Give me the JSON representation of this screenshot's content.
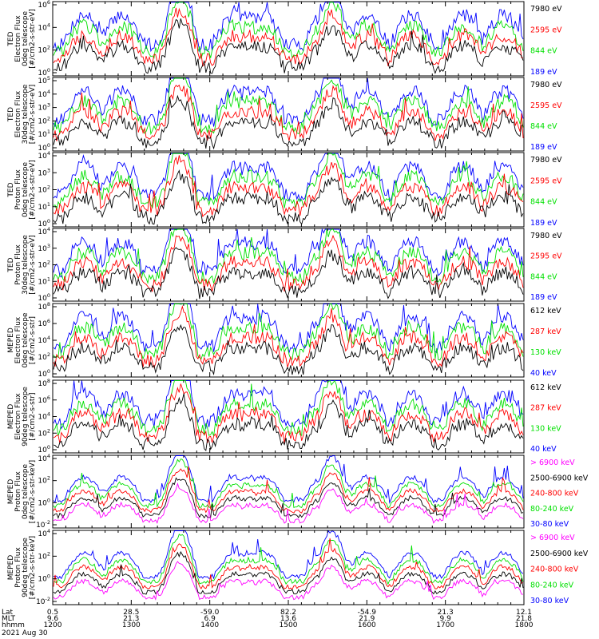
{
  "colors": {
    "magenta": "#ff00ff",
    "black": "#000000",
    "red": "#ff0000",
    "green": "#00e000",
    "blue": "#0000ff"
  },
  "chart_data": [
    {
      "type": "line",
      "ylabel": [
        "TED",
        "Electron Flux",
        "0deg telescope",
        "[#/cm2-s-str-eV]"
      ],
      "yticks": [
        "10^6",
        "10^4",
        "10^2",
        "10^0"
      ],
      "ylim_exp": [
        0,
        6
      ],
      "legend": [
        {
          "label": "7980 eV",
          "color": "black"
        },
        {
          "label": "2595 eV",
          "color": "red"
        },
        {
          "label": "844 eV",
          "color": "green"
        },
        {
          "label": "189 eV",
          "color": "blue"
        }
      ]
    },
    {
      "type": "line",
      "ylabel": [
        "TED",
        "Electron Flux",
        "30deg telescope",
        "[#/cm2-s-str-eV]"
      ],
      "yticks": [
        "10^5",
        "10^4",
        "10^3",
        "10^2",
        "10^1",
        "10^0"
      ],
      "ylim_exp": [
        0,
        5
      ],
      "legend": [
        {
          "label": "7980 eV",
          "color": "black"
        },
        {
          "label": "2595 eV",
          "color": "red"
        },
        {
          "label": "844 eV",
          "color": "green"
        },
        {
          "label": "189 eV",
          "color": "blue"
        }
      ]
    },
    {
      "type": "line",
      "ylabel": [
        "TED",
        "Proton Flux",
        "0deg telescope",
        "[#/cm2-s-str-eV]"
      ],
      "yticks": [
        "10^4",
        "10^3",
        "10^2",
        "10^1",
        "10^0"
      ],
      "ylim_exp": [
        0,
        4
      ],
      "legend": [
        {
          "label": "7980 eV",
          "color": "black"
        },
        {
          "label": "2595 eV",
          "color": "red"
        },
        {
          "label": "844 eV",
          "color": "green"
        },
        {
          "label": "189 eV",
          "color": "blue"
        }
      ]
    },
    {
      "type": "line",
      "ylabel": [
        "TED",
        "Proton Flux",
        "30deg telescope",
        "[#/cm2-s-str-eV]"
      ],
      "yticks": [
        "10^4",
        "10^3",
        "10^2",
        "10^1",
        "10^0"
      ],
      "ylim_exp": [
        0,
        4
      ],
      "legend": [
        {
          "label": "7980 eV",
          "color": "black"
        },
        {
          "label": "2595 eV",
          "color": "red"
        },
        {
          "label": "844 eV",
          "color": "green"
        },
        {
          "label": "189 eV",
          "color": "blue"
        }
      ]
    },
    {
      "type": "line",
      "ylabel": [
        "MEPED",
        "Electron Flux",
        "0deg telescope",
        "[#/cm2-s-str]"
      ],
      "yticks": [
        "10^8",
        "10^6",
        "10^4",
        "10^2",
        "10^0"
      ],
      "ylim_exp": [
        0,
        8
      ],
      "legend": [
        {
          "label": "612 keV",
          "color": "black"
        },
        {
          "label": "287 keV",
          "color": "red"
        },
        {
          "label": "130 keV",
          "color": "green"
        },
        {
          "label": "40 keV",
          "color": "blue"
        }
      ]
    },
    {
      "type": "line",
      "ylabel": [
        "MEPED",
        "Electron Flux",
        "90deg telescope",
        "[#/cm2-s-str]"
      ],
      "yticks": [
        "10^8",
        "10^6",
        "10^4",
        "10^2",
        "10^0"
      ],
      "ylim_exp": [
        0,
        8
      ],
      "legend": [
        {
          "label": "612 keV",
          "color": "black"
        },
        {
          "label": "287 keV",
          "color": "red"
        },
        {
          "label": "130 keV",
          "color": "green"
        },
        {
          "label": "40 keV",
          "color": "blue"
        }
      ]
    },
    {
      "type": "line",
      "ylabel": [
        "MEPED",
        "Proton Flux",
        "0deg telescope",
        "[#/cm2-s-str-keV]"
      ],
      "yticks": [
        "10^4",
        "10^2",
        "10^0",
        "10^-2"
      ],
      "ylim_exp": [
        -3,
        6
      ],
      "legend": [
        {
          "label": "> 6900 keV",
          "color": "magenta"
        },
        {
          "label": "2500-6900 keV",
          "color": "black"
        },
        {
          "label": "240-800 keV",
          "color": "red"
        },
        {
          "label": "80-240 keV",
          "color": "green"
        },
        {
          "label": "30-80 keV",
          "color": "blue"
        }
      ]
    },
    {
      "type": "line",
      "ylabel": [
        "MEPED",
        "Proton Flux",
        "90deg telescope",
        "[#/cm2-s-str-keV]"
      ],
      "yticks": [
        "10^4",
        "10^2",
        "10^0",
        "10^-2"
      ],
      "ylim_exp": [
        -3,
        6
      ],
      "legend": [
        {
          "label": "> 6900 keV",
          "color": "magenta"
        },
        {
          "label": "2500-6900 keV",
          "color": "black"
        },
        {
          "label": "240-800 keV",
          "color": "red"
        },
        {
          "label": "80-240 keV",
          "color": "green"
        },
        {
          "label": "30-80 keV",
          "color": "blue"
        }
      ]
    }
  ],
  "time_axis": {
    "row_labels": [
      "Lat",
      "MLT",
      "hhmm"
    ],
    "columns": [
      {
        "lat": "0.5",
        "mlt": "9.6",
        "hhmm": "1200"
      },
      {
        "lat": "28.5",
        "mlt": "21.3",
        "hhmm": "1300"
      },
      {
        "lat": "-59.0",
        "mlt": "6.9",
        "hhmm": "1400"
      },
      {
        "lat": "82.2",
        "mlt": "13.6",
        "hhmm": "1500"
      },
      {
        "lat": "-54.9",
        "mlt": "21.9",
        "hhmm": "1600"
      },
      {
        "lat": "21.3",
        "mlt": "9.9",
        "hhmm": "1700"
      },
      {
        "lat": "12.1",
        "mlt": "21.8",
        "hhmm": "1800"
      }
    ],
    "date": "2021 Aug 30"
  }
}
